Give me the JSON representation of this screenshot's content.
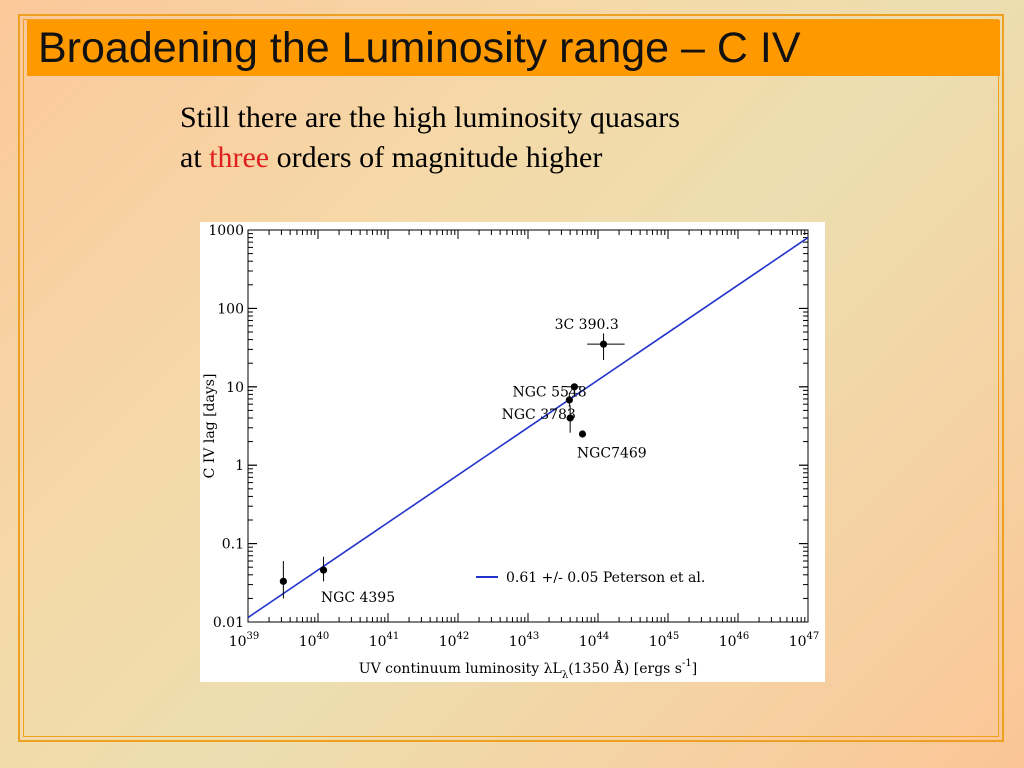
{
  "slide": {
    "title": "Broadening the Luminosity range – C IV",
    "subtitle_line1": "Still there are the high luminosity quasars",
    "subtitle_line2_before": "at ",
    "subtitle_line2_highlight": "three",
    "subtitle_line2_after": " orders of magnitude higher",
    "highlight_color": "#e02020",
    "title_bar_color": "#ff9900"
  },
  "chart_data": {
    "type": "scatter",
    "x_scale": "log",
    "y_scale": "log",
    "xlim": [
      1e+39,
      1e+47
    ],
    "ylim": [
      0.01,
      1000
    ],
    "xlabel": "UV continuum luminosity λL",
    "xlabel_sub": "λ",
    "xlabel_rest": "(1350 Å)  [ergs s",
    "xlabel_sup": "-1",
    "xlabel_end": "]",
    "ylabel": "C IV lag [days]",
    "x_tick_base": "10",
    "x_tick_exponents": [
      "39",
      "40",
      "41",
      "42",
      "43",
      "44",
      "45",
      "46",
      "47"
    ],
    "y_tick_labels": [
      "1000",
      "100",
      "10",
      "1",
      "0.1",
      "0.01"
    ],
    "y_tick_values": [
      1000,
      100,
      10,
      1,
      0.1,
      0.01
    ],
    "points": [
      {
        "x": 3.2e+39,
        "y": 0.033,
        "yerr": [
          0.02,
          0.06
        ],
        "xerr": null
      },
      {
        "x": 1.2e+40,
        "y": 0.046,
        "yerr": [
          0.033,
          0.068
        ],
        "xerr": null
      },
      {
        "x": 4.6e+43,
        "y": 10,
        "yerr": null,
        "xerr": [
          3.6e+43,
          5.8e+43
        ]
      },
      {
        "x": 3.9e+43,
        "y": 6.8,
        "yerr": [
          5.6,
          8.4
        ],
        "xerr": null
      },
      {
        "x": 4e+43,
        "y": 4.0,
        "yerr": [
          2.6,
          5.8
        ],
        "xerr": [
          3.6e+43,
          4.4e+43
        ]
      },
      {
        "x": 6e+43,
        "y": 2.5,
        "yerr": null,
        "xerr": null
      },
      {
        "x": 1.2e+44,
        "y": 35,
        "yerr": [
          22,
          48
        ],
        "xerr": [
          7e+43,
          2.4e+44
        ]
      }
    ],
    "annotations": [
      {
        "text": "NGC 4395",
        "x": 1.1e+40,
        "y": 0.018
      },
      {
        "text": "3C 390.3",
        "x": 2.4e+43,
        "y": 55
      },
      {
        "text": "NGC 5548",
        "x": 6e+42,
        "y": 7.5
      },
      {
        "text": "NGC 3783",
        "x": 4.2e+42,
        "y": 3.9
      },
      {
        "text": "NGC7469",
        "x": 5e+43,
        "y": 1.25
      }
    ],
    "series": [
      {
        "name": "0.61 +/- 0.05 Peterson et al.",
        "color": "#2233cc",
        "x": [
          1e+39,
          1e+47
        ],
        "y": [
          0.0114,
          800
        ]
      }
    ],
    "legend_position": "bottom-right"
  }
}
